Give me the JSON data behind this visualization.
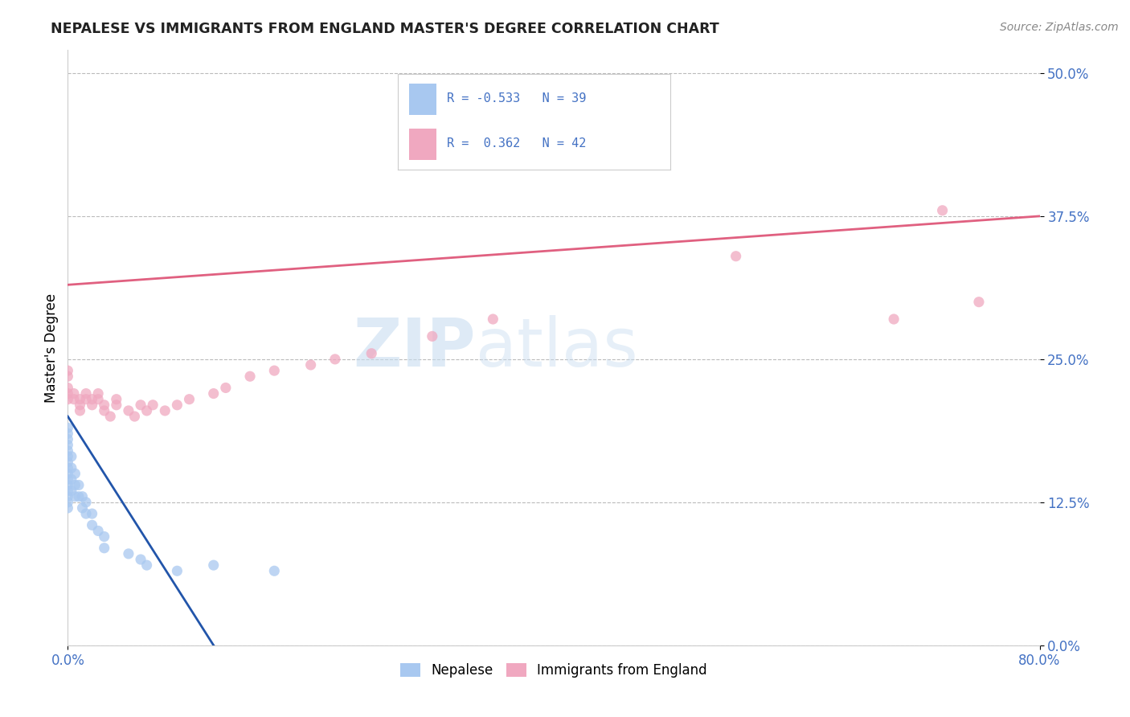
{
  "title": "NEPALESE VS IMMIGRANTS FROM ENGLAND MASTER'S DEGREE CORRELATION CHART",
  "source_text": "Source: ZipAtlas.com",
  "ylabel": "Master's Degree",
  "ytick_labels": [
    "0.0%",
    "12.5%",
    "25.0%",
    "37.5%",
    "50.0%"
  ],
  "ytick_values": [
    0.0,
    0.125,
    0.25,
    0.375,
    0.5
  ],
  "xtick_labels": [
    "0.0%",
    "80.0%"
  ],
  "xtick_values": [
    0.0,
    0.8
  ],
  "xlim": [
    0.0,
    0.8
  ],
  "ylim": [
    0.0,
    0.52
  ],
  "legend_bottom": [
    "Nepalese",
    "Immigrants from England"
  ],
  "nepalese_color": "#a8c8f0",
  "england_color": "#f0a8c0",
  "nepalese_line_color": "#2255aa",
  "england_line_color": "#e06080",
  "watermark_zip": "ZIP",
  "watermark_atlas": "atlas",
  "background_color": "#ffffff",
  "grid_color": "#bbbbbb",
  "nepalese_R": -0.533,
  "nepalese_N": 39,
  "england_R": 0.362,
  "england_N": 42,
  "nepalese_line_x0": 0.0,
  "nepalese_line_y0": 0.2,
  "nepalese_line_x1": 0.12,
  "nepalese_line_y1": 0.0,
  "england_line_x0": 0.0,
  "england_line_y0": 0.315,
  "england_line_x1": 0.8,
  "england_line_y1": 0.375,
  "nepalese_points_x": [
    0.0,
    0.0,
    0.0,
    0.0,
    0.0,
    0.0,
    0.0,
    0.0,
    0.0,
    0.0,
    0.0,
    0.0,
    0.0,
    0.0,
    0.0,
    0.003,
    0.003,
    0.003,
    0.003,
    0.006,
    0.006,
    0.006,
    0.009,
    0.009,
    0.012,
    0.012,
    0.015,
    0.015,
    0.02,
    0.02,
    0.025,
    0.03,
    0.03,
    0.05,
    0.06,
    0.065,
    0.09,
    0.12,
    0.17
  ],
  "nepalese_points_y": [
    0.19,
    0.185,
    0.18,
    0.175,
    0.17,
    0.165,
    0.16,
    0.155,
    0.15,
    0.145,
    0.14,
    0.135,
    0.13,
    0.125,
    0.12,
    0.165,
    0.155,
    0.145,
    0.135,
    0.15,
    0.14,
    0.13,
    0.14,
    0.13,
    0.13,
    0.12,
    0.125,
    0.115,
    0.115,
    0.105,
    0.1,
    0.095,
    0.085,
    0.08,
    0.075,
    0.07,
    0.065,
    0.07,
    0.065
  ],
  "england_points_x": [
    0.0,
    0.0,
    0.0,
    0.0,
    0.0,
    0.005,
    0.005,
    0.01,
    0.01,
    0.01,
    0.015,
    0.015,
    0.02,
    0.02,
    0.025,
    0.025,
    0.03,
    0.03,
    0.035,
    0.04,
    0.04,
    0.05,
    0.055,
    0.06,
    0.065,
    0.07,
    0.08,
    0.09,
    0.1,
    0.12,
    0.13,
    0.15,
    0.17,
    0.2,
    0.22,
    0.25,
    0.3,
    0.35,
    0.55,
    0.68,
    0.72,
    0.75
  ],
  "england_points_y": [
    0.24,
    0.235,
    0.225,
    0.22,
    0.215,
    0.22,
    0.215,
    0.215,
    0.21,
    0.205,
    0.22,
    0.215,
    0.215,
    0.21,
    0.22,
    0.215,
    0.21,
    0.205,
    0.2,
    0.215,
    0.21,
    0.205,
    0.2,
    0.21,
    0.205,
    0.21,
    0.205,
    0.21,
    0.215,
    0.22,
    0.225,
    0.235,
    0.24,
    0.245,
    0.25,
    0.255,
    0.27,
    0.285,
    0.34,
    0.285,
    0.38,
    0.3
  ]
}
